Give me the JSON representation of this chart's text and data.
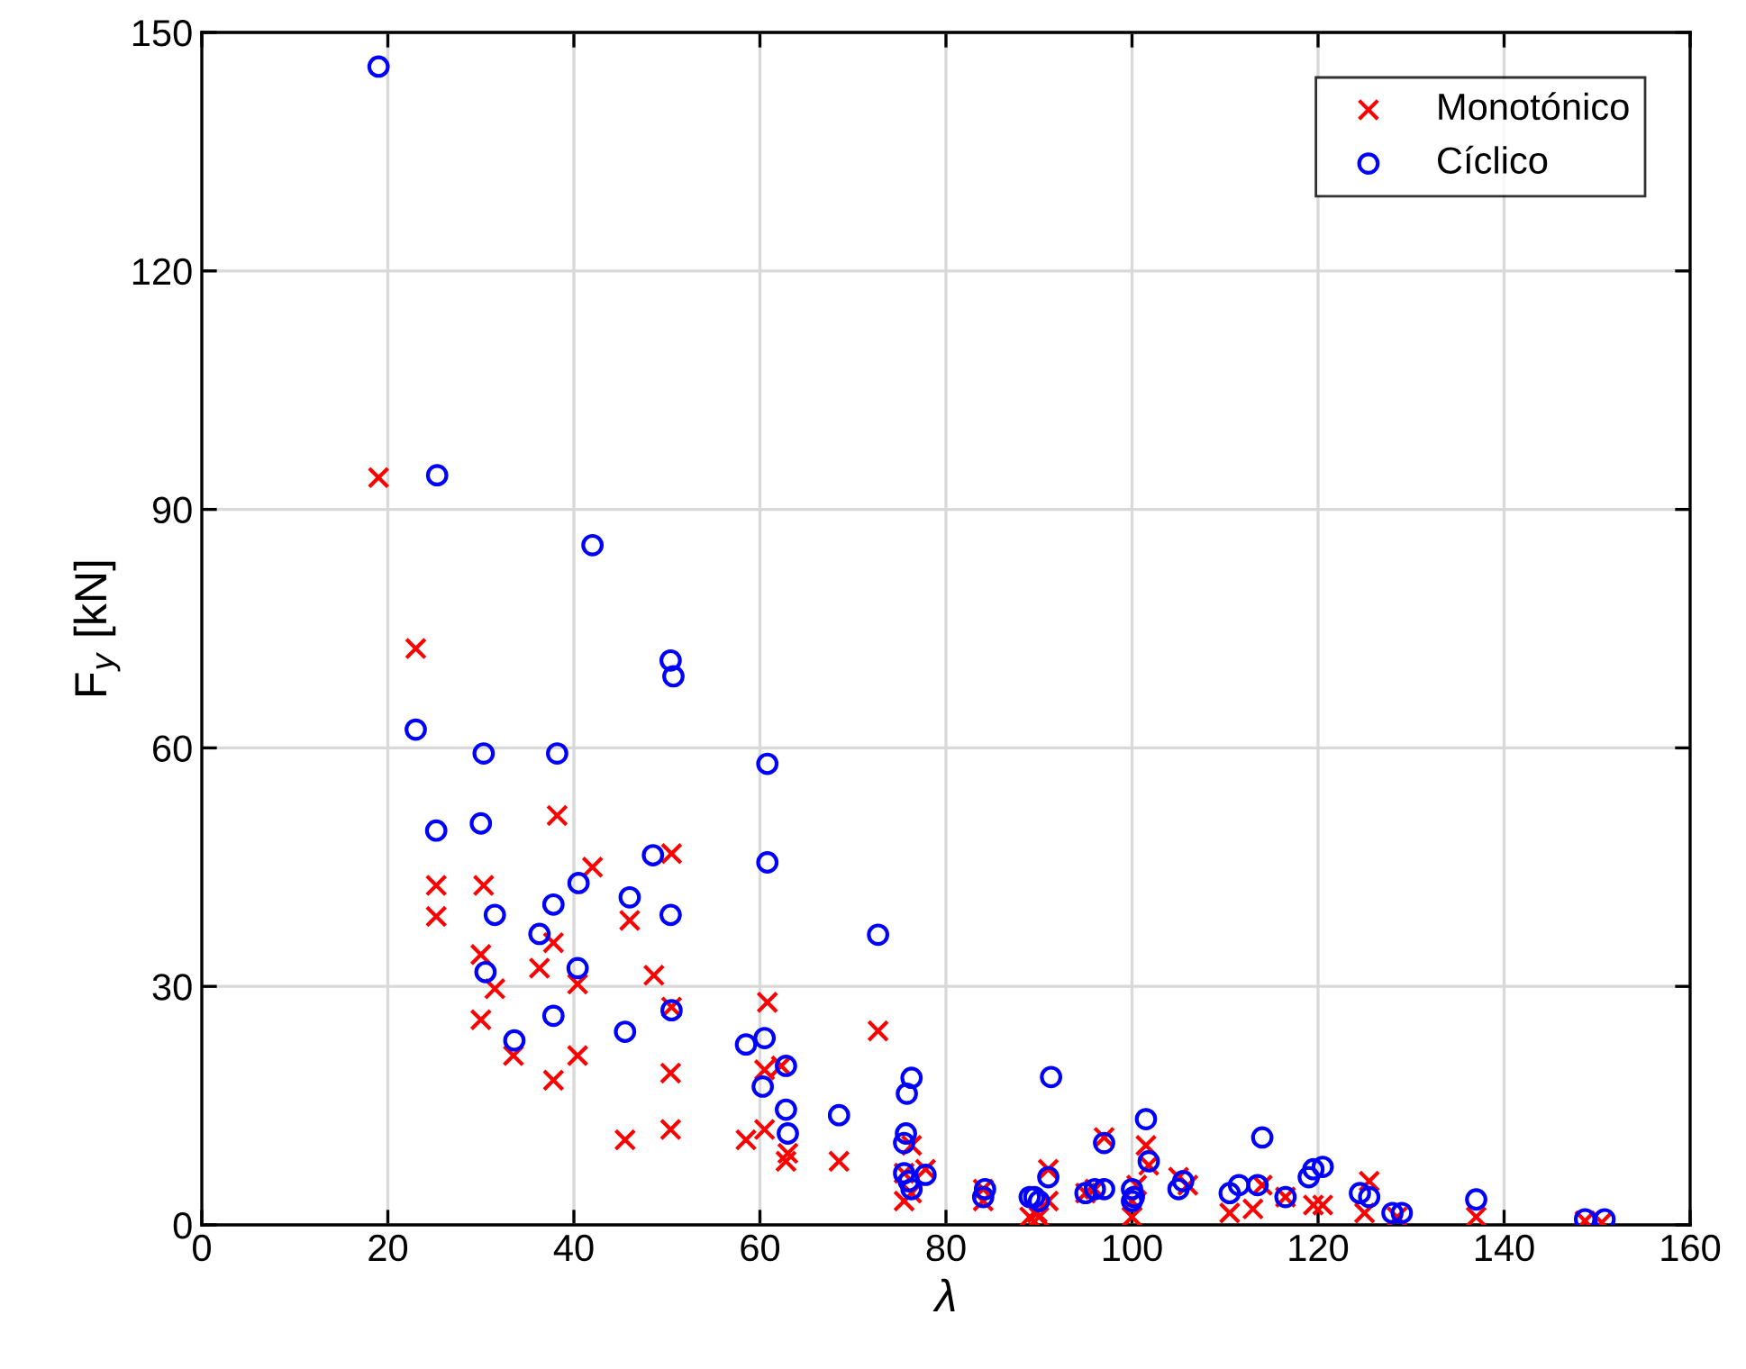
{
  "chart_data": {
    "type": "scatter",
    "xlabel": "λ",
    "ylabel": "F$_{y}$ [kN]",
    "xlim": [
      0,
      160
    ],
    "ylim": [
      0,
      150
    ],
    "xticks": [
      0,
      20,
      40,
      60,
      80,
      100,
      120,
      140,
      160
    ],
    "yticks": [
      0,
      30,
      60,
      90,
      120,
      150
    ],
    "grid": true,
    "legend": "top right",
    "series": [
      {
        "name": "Monotónico",
        "color": "#ff0000",
        "marker": "cross",
        "x": [
          19,
          23,
          25.2,
          25.2,
          30.3,
          30,
          30,
          31.5,
          33.5,
          36.3,
          37.8,
          37.8,
          38.2,
          40.4,
          40.4,
          42,
          45.5,
          46,
          48.6,
          50.5,
          50.4,
          50.4,
          50.5,
          58.5,
          60.5,
          60.5,
          60.8,
          62.3,
          62.8,
          63,
          68.5,
          72.7,
          75.5,
          75.5,
          76.3,
          76.3,
          77.8,
          84,
          84,
          89,
          89.8,
          90,
          91,
          91,
          95,
          96,
          97,
          100,
          100,
          100.5,
          101.5,
          101.8,
          105,
          106,
          110.5,
          113,
          114,
          116.5,
          119.5,
          120.5,
          125,
          125.5,
          128.5,
          137,
          148.7,
          150.5
        ],
        "values": [
          94,
          72.5,
          42.7,
          38.8,
          42.7,
          34,
          25.8,
          29.7,
          21.3,
          32.3,
          35.5,
          18.2,
          51.5,
          30.3,
          21.3,
          45,
          10.7,
          38.3,
          31.4,
          46.7,
          19.1,
          12,
          27.4,
          10.7,
          12,
          19.5,
          28,
          20,
          8,
          9,
          8,
          24.4,
          3,
          6.5,
          10,
          4,
          7,
          3,
          4.5,
          1,
          1.5,
          1,
          7,
          3,
          4,
          4.5,
          11,
          1,
          3,
          5,
          10,
          7.5,
          6,
          5,
          1.5,
          2,
          5,
          3.5,
          2.5,
          2.5,
          1.5,
          5.5,
          1,
          1,
          0.5,
          0.3
        ]
      },
      {
        "name": "Cíclico",
        "color": "#0000ff",
        "marker": "circle",
        "x": [
          19,
          25.3,
          23,
          25.2,
          30.3,
          30,
          30.5,
          31.5,
          33.6,
          36.3,
          37.8,
          37.8,
          38.2,
          40.5,
          40.4,
          42,
          45.5,
          46,
          48.5,
          50.4,
          50.7,
          50.4,
          50.5,
          58.5,
          60.3,
          60.5,
          60.8,
          60.8,
          62.8,
          62.8,
          63,
          68.5,
          72.7,
          75.5,
          75.7,
          75.8,
          76.3,
          75.5,
          76,
          76.3,
          77.8,
          84,
          84.2,
          89,
          89.5,
          90,
          91,
          91.3,
          95,
          96,
          97,
          97,
          100,
          100,
          100.2,
          101.5,
          101.8,
          105,
          105.5,
          110.5,
          111.5,
          113.5,
          114,
          116.5,
          119,
          119.5,
          120.5,
          124.5,
          125.5,
          128,
          129,
          137,
          148.7,
          150.8
        ],
        "values": [
          145.7,
          94.3,
          62.3,
          49.6,
          59.3,
          50.5,
          31.8,
          39,
          23.2,
          36.6,
          26.3,
          40.3,
          59.3,
          43,
          32.3,
          85.5,
          24.3,
          41.2,
          46.5,
          71,
          69,
          39,
          27,
          22.7,
          17.4,
          23.5,
          58,
          45.6,
          20,
          14.5,
          11.5,
          13.8,
          36.5,
          10.3,
          11.5,
          16.5,
          18.5,
          6.5,
          5.5,
          4.5,
          6.3,
          3.5,
          4.5,
          3.5,
          3.5,
          3,
          6,
          18.6,
          4,
          4.5,
          4.5,
          10.3,
          4.5,
          3,
          3.5,
          13.3,
          8,
          4.5,
          5.5,
          4,
          5,
          5,
          11,
          3.5,
          6,
          7,
          7.3,
          4,
          3.5,
          1.5,
          1.5,
          3.2,
          0.7,
          0.7
        ]
      }
    ]
  }
}
